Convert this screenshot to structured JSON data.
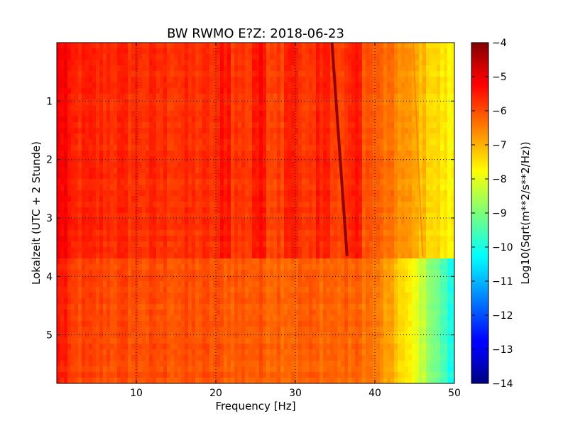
{
  "chart_data": {
    "type": "heatmap",
    "title": "BW RWMO E?Z: 2018-06-23",
    "xlabel": "Frequency [Hz]",
    "ylabel": "Lokalzeit (UTC + 2 Stunde)",
    "xlim": [
      0,
      50
    ],
    "ylim": [
      0,
      5.83
    ],
    "y_inverted": true,
    "x_ticks": [
      10,
      20,
      30,
      40,
      50
    ],
    "x_tick_labels": [
      "10",
      "20",
      "30",
      "40",
      "50"
    ],
    "y_ticks": [
      1,
      2,
      3,
      4,
      5
    ],
    "y_tick_labels": [
      "1",
      "2",
      "3",
      "4",
      "5"
    ],
    "grid": "dotted",
    "colormap": "jet",
    "colorbar": {
      "label": "Log10(Sqrt(m**2/s**2/Hz))",
      "range": [
        -14,
        -4
      ],
      "ticks": [
        -4,
        -5,
        -6,
        -7,
        -8,
        -9,
        -10,
        -11,
        -12,
        -13,
        -14
      ],
      "tick_labels": [
        "−4",
        "−5",
        "−6",
        "−7",
        "−8",
        "−9",
        "−10",
        "−11",
        "−12",
        "−13",
        "−14"
      ]
    },
    "features": {
      "regime_change_time": 3.65,
      "dark_line_start": [
        34.6,
        0.0
      ],
      "dark_line_end": [
        36.5,
        3.65
      ],
      "faint_line_start": [
        44.8,
        0.0
      ],
      "faint_line_end": [
        46.0,
        3.65
      ],
      "level_low_freq_upper": -5.8,
      "level_high_freq_upper": -7.3,
      "level_low_freq_lower": -6.2,
      "level_high_freq_lower": -10.3
    }
  }
}
